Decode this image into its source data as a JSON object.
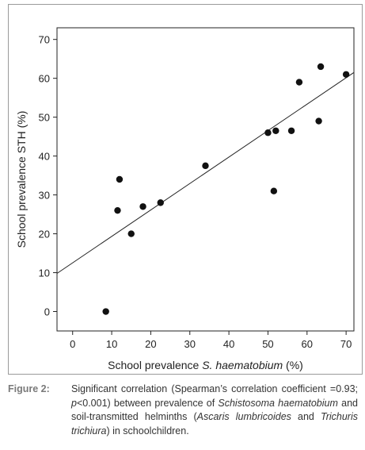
{
  "chart_data": {
    "type": "scatter",
    "xlabel_prefix": "School prevalence ",
    "xlabel_italic": "S. haematobium",
    "xlabel_suffix": " (%)",
    "ylabel": "School prevalence STH (%)",
    "xlim": [
      -4,
      72
    ],
    "ylim": [
      -5,
      73
    ],
    "x_ticks": [
      0,
      10,
      20,
      30,
      40,
      50,
      60,
      70
    ],
    "y_ticks": [
      0,
      10,
      20,
      30,
      40,
      50,
      60,
      70
    ],
    "grid": false,
    "points": [
      {
        "x": 8.5,
        "y": 0
      },
      {
        "x": 11.5,
        "y": 26
      },
      {
        "x": 12,
        "y": 34
      },
      {
        "x": 15,
        "y": 20
      },
      {
        "x": 18,
        "y": 27
      },
      {
        "x": 22.5,
        "y": 28
      },
      {
        "x": 34,
        "y": 37.5
      },
      {
        "x": 50,
        "y": 46
      },
      {
        "x": 52,
        "y": 46.5
      },
      {
        "x": 51.5,
        "y": 31
      },
      {
        "x": 56,
        "y": 46.5
      },
      {
        "x": 58,
        "y": 59
      },
      {
        "x": 63,
        "y": 49
      },
      {
        "x": 63.5,
        "y": 63
      },
      {
        "x": 70,
        "y": 61
      }
    ],
    "fit_line": {
      "x": [
        -4,
        72
      ],
      "y": [
        9.8,
        61.5
      ]
    }
  },
  "caption": {
    "label": "Figure 2:",
    "text_1": "Significant correlation (Spearman’s correlation coefficient =0.93; ",
    "p_symbol": "p",
    "text_2": "<0.001) between prevalence of ",
    "species_1": "Schistosoma haematobium",
    "text_3": " and soil-transmitted helminths (",
    "species_2": "Ascaris lumbricoides",
    "text_4": " and ",
    "species_3": "Trichuris trichiura",
    "text_5": ") in schoolchildren."
  }
}
